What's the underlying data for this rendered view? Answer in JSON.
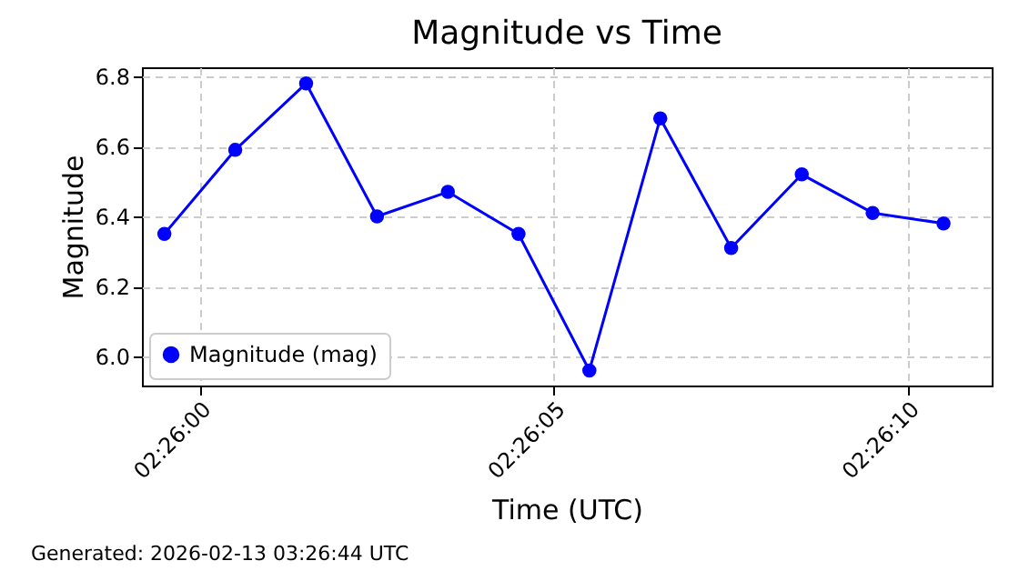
{
  "chart_data": {
    "type": "line",
    "title": "Magnitude vs Time",
    "xlabel": "Time (UTC)",
    "ylabel": "Magnitude",
    "annotations": [
      "Generated: 2026-02-13 03:26:44 UTC"
    ],
    "x": [
      2.433194,
      2.433472,
      2.43375,
      2.434028,
      2.434306,
      2.434583,
      2.434861,
      2.435139,
      2.435417,
      2.435694,
      2.435972,
      2.43625
    ],
    "series": [
      {
        "name": "Magnitude (mag)",
        "color": "#0000ff",
        "values": [
          6.35,
          6.59,
          6.78,
          6.4,
          6.47,
          6.35,
          5.96,
          6.68,
          6.31,
          6.52,
          6.41,
          6.38
        ]
      }
    ],
    "xlim": [
      2.433106,
      2.436439
    ],
    "xticks": [
      {
        "value": 2.433333,
        "label": "02:26:00"
      },
      {
        "value": 2.434722,
        "label": "02:26:05"
      },
      {
        "value": 2.436111,
        "label": "02:26:10"
      }
    ],
    "ylim": [
      5.917,
      6.826
    ],
    "yticks": [
      {
        "value": 6,
        "label": "6.0"
      },
      6.2,
      6.4,
      6.6,
      6.8
    ],
    "grid": true,
    "legend": "bottom left",
    "marker": "circle",
    "line_style": "solid"
  }
}
